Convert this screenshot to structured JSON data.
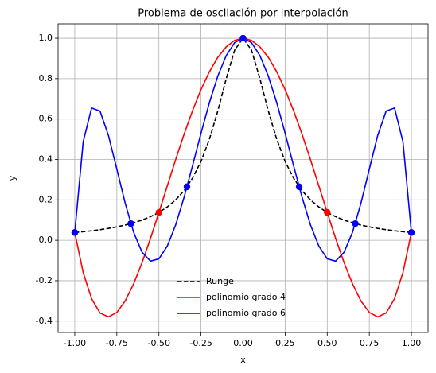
{
  "chart_data": {
    "type": "line",
    "title": "Problema de oscilación por interpolación",
    "xlabel": "x",
    "ylabel": "y",
    "x": [
      -1,
      -0.95,
      -0.9,
      -0.85,
      -0.8,
      -0.75,
      -0.7,
      -0.65,
      -0.6,
      -0.55,
      -0.5,
      -0.45,
      -0.4,
      -0.35,
      -0.3,
      -0.25,
      -0.2,
      -0.15,
      -0.1,
      -0.05,
      0,
      0.05,
      0.1,
      0.15,
      0.2,
      0.25,
      0.3,
      0.35,
      0.4,
      0.45,
      0.5,
      0.55,
      0.6,
      0.65,
      0.7,
      0.75,
      0.8,
      0.85,
      0.9,
      0.95,
      1
    ],
    "series": [
      {
        "name": "Runge",
        "color": "#000000",
        "dash": true,
        "values": [
          0.0385,
          0.0424,
          0.0471,
          0.0525,
          0.0588,
          0.0664,
          0.0755,
          0.0865,
          0.1,
          0.1168,
          0.1379,
          0.1649,
          0.2,
          0.2462,
          0.3077,
          0.3902,
          0.5,
          0.64,
          0.8,
          0.9412,
          1,
          0.9412,
          0.8,
          0.64,
          0.5,
          0.3902,
          0.3077,
          0.2462,
          0.2,
          0.1649,
          0.1379,
          0.1168,
          0.1,
          0.0865,
          0.0755,
          0.0664,
          0.0588,
          0.0525,
          0.0471,
          0.0424,
          0.0385
        ]
      },
      {
        "name": "polinomio grado 4",
        "color": "#ff0000",
        "dash": false,
        "values": [
          0.0385,
          -0.1595,
          -0.2891,
          -0.3595,
          -0.3793,
          -0.3568,
          -0.2997,
          -0.2153,
          -0.1101,
          0.0096,
          0.1379,
          0.2698,
          0.4005,
          0.5258,
          0.6419,
          0.7456,
          0.8342,
          0.9054,
          0.9576,
          0.9893,
          1,
          0.9893,
          0.9576,
          0.9054,
          0.8342,
          0.7456,
          0.6419,
          0.5258,
          0.4005,
          0.2698,
          0.1379,
          0.0096,
          -0.1101,
          -0.2153,
          -0.2997,
          -0.3568,
          -0.3793,
          -0.3595,
          -0.2891,
          -0.1595,
          0.0385
        ]
      },
      {
        "name": "polinomio grado 6",
        "color": "#0000ff",
        "dash": false,
        "values": [
          0.0385,
          0.4873,
          0.6548,
          0.6396,
          0.5191,
          0.3522,
          0.1823,
          0.0391,
          -0.0591,
          -0.1031,
          -0.0915,
          -0.0285,
          0.0772,
          0.2143,
          0.3696,
          0.5297,
          0.6813,
          0.8128,
          0.9142,
          0.9782,
          1,
          0.9782,
          0.9142,
          0.8128,
          0.6813,
          0.5297,
          0.3696,
          0.2143,
          0.0772,
          -0.0285,
          -0.0915,
          -0.1031,
          -0.0591,
          0.0391,
          0.1823,
          0.3522,
          0.5191,
          0.6396,
          0.6548,
          0.4873,
          0.0385
        ]
      }
    ],
    "points": [
      {
        "color": "#ff0000",
        "x": [
          -1,
          -0.5,
          0,
          0.5,
          1
        ],
        "y": [
          0.0385,
          0.1379,
          1,
          0.1379,
          0.0385
        ]
      },
      {
        "color": "#0000ff",
        "x": [
          -1,
          -0.6667,
          -0.3333,
          0,
          0.3333,
          0.6667,
          1
        ],
        "y": [
          0.0385,
          0.0826,
          0.2647,
          1,
          0.2647,
          0.0826,
          0.0385
        ]
      }
    ],
    "xlim": [
      -1.099,
      1.099
    ],
    "ylim": [
      -0.456,
      1.071
    ],
    "xticks": [
      {
        "value": -1,
        "label": "-1.00"
      },
      {
        "value": -0.75,
        "label": "-0.75"
      },
      {
        "value": -0.5,
        "label": "-0.50"
      },
      {
        "value": -0.25,
        "label": "-0.25"
      },
      {
        "value": 0,
        "label": "0.00"
      },
      {
        "value": 0.25,
        "label": "0.25"
      },
      {
        "value": 0.5,
        "label": "0.50"
      },
      {
        "value": 0.75,
        "label": "0.75"
      },
      {
        "value": 1,
        "label": "1.00"
      }
    ],
    "yticks": [
      -0.4,
      -0.2,
      {
        "value": 0,
        "label": "0.0"
      },
      0.2,
      0.4,
      0.6,
      0.8,
      {
        "value": 1,
        "label": "1.0"
      }
    ],
    "grid": true,
    "legend": "lower center"
  }
}
